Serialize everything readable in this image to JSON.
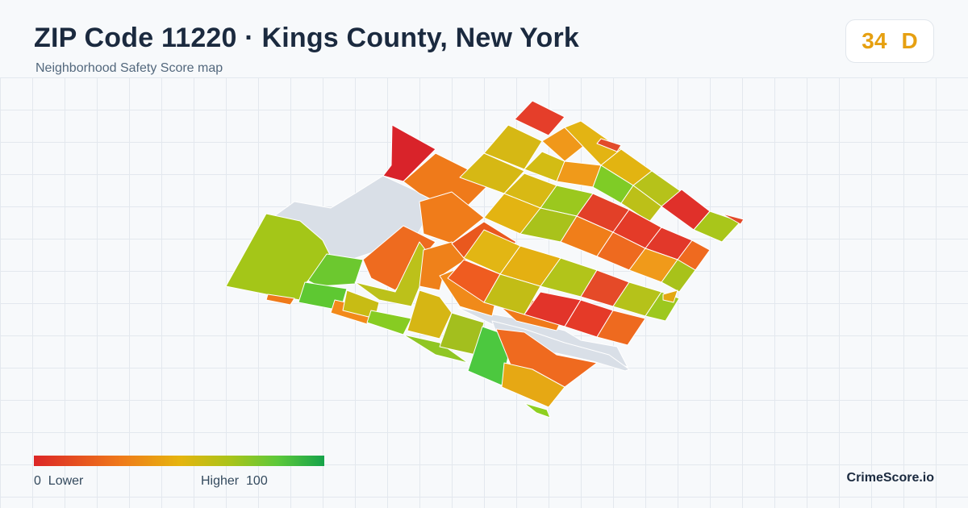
{
  "header": {
    "title": "ZIP Code 11220 · Kings County, New York",
    "subtitle": "Neighborhood Safety Score map"
  },
  "score": {
    "value": "34",
    "grade": "D",
    "color": "#e6a011"
  },
  "legend": {
    "min": "0",
    "min_label": "Lower",
    "max_label": "Higher",
    "max": "100",
    "colors": [
      "#dc2626",
      "#ef7a1a",
      "#e6b40e",
      "#a8c41a",
      "#5cc83a",
      "#16a34a"
    ]
  },
  "brand": "CrimeScore.io"
}
